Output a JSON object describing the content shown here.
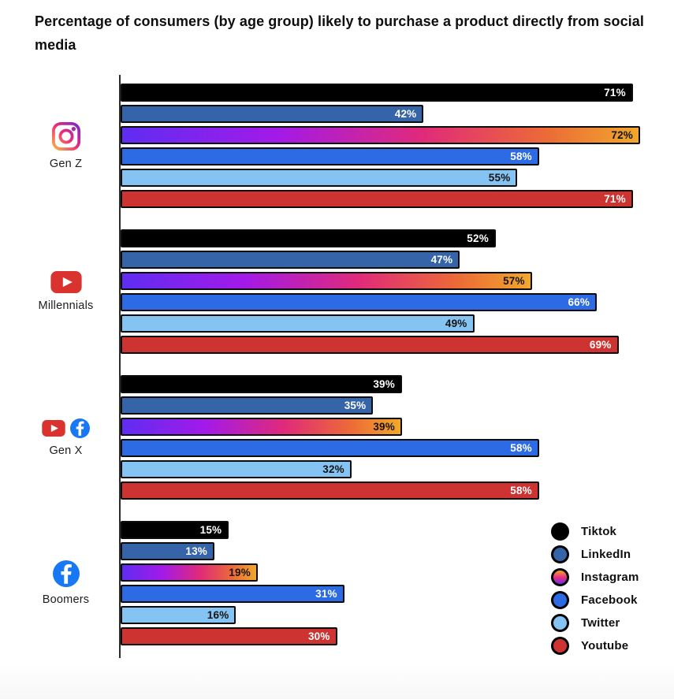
{
  "title": "Percentage of consumers (by age group) likely to purchase a product directly from social media",
  "chart_data": {
    "type": "bar",
    "orientation": "horizontal",
    "value_unit": "%",
    "axis_max": 72,
    "grid": false,
    "legend_position": "bottom-right",
    "categories": [
      "Gen Z",
      "Millennials",
      "Gen X",
      "Boomers"
    ],
    "category_icons": [
      [
        "instagram-icon"
      ],
      [
        "youtube-icon"
      ],
      [
        "youtube-icon",
        "facebook-icon"
      ],
      [
        "facebook-icon"
      ]
    ],
    "series": [
      {
        "name": "Tiktok",
        "color": "#000000",
        "label_color": "#ffffff",
        "values": [
          71,
          52,
          39,
          15
        ]
      },
      {
        "name": "LinkedIn",
        "color": "#3564a8",
        "label_color": "#ffffff",
        "values": [
          42,
          47,
          35,
          13
        ]
      },
      {
        "name": "Instagram",
        "gradient": [
          "#5f2df2 0%",
          "#a31ae8 30%",
          "#e02a7a 58%",
          "#ec6a37 82%",
          "#f1a82c 100%"
        ],
        "label_color": "#141414",
        "values": [
          72,
          57,
          39,
          19
        ]
      },
      {
        "name": "Facebook",
        "color": "#2d6be4",
        "label_color": "#ffffff",
        "values": [
          58,
          66,
          58,
          31
        ]
      },
      {
        "name": "Twitter",
        "color": "#85c3f2",
        "label_color": "#141414",
        "values": [
          55,
          49,
          32,
          16
        ]
      },
      {
        "name": "Youtube",
        "color": "#cd3431",
        "label_color": "#ffffff",
        "values": [
          71,
          69,
          58,
          30
        ]
      }
    ],
    "legend": [
      {
        "label": "Tiktok",
        "color": "#000000"
      },
      {
        "label": "LinkedIn",
        "color": "#3564a8"
      },
      {
        "label": "Instagram",
        "gradient": [
          "#f1a82c 0%",
          "#e8317c 50%",
          "#6f2df0 100%"
        ]
      },
      {
        "label": "Facebook",
        "color": "#2d6be4"
      },
      {
        "label": "Twitter",
        "color": "#85c3f2"
      },
      {
        "label": "Youtube",
        "color": "#cd3431"
      }
    ],
    "brand_colors": {
      "youtube_icon": "#da322e",
      "facebook_icon": "#1877f2",
      "instagram_icon_gradient": [
        "#f9ce34",
        "#ee2a7b",
        "#6228d7"
      ]
    }
  }
}
